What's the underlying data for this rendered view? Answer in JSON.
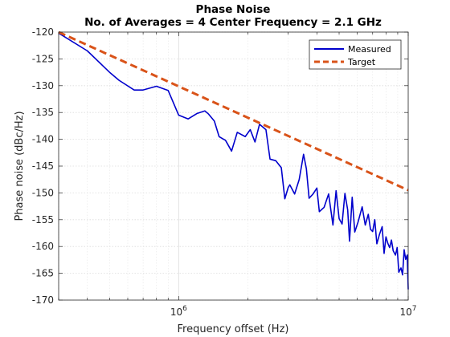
{
  "chart_data": {
    "type": "line",
    "title": "Phase Noise",
    "subtitle": "No. of Averages = 4 Center Frequency = 2.1 GHz",
    "xlabel": "Frequency offset (Hz)",
    "ylabel": "Phase noise (dBc/Hz)",
    "x_scale": "log",
    "xlim": [
      300000,
      10000000
    ],
    "ylim": [
      -170,
      -120
    ],
    "grid": true,
    "minor_grid": true,
    "legend_position": "top-right",
    "x_tick_labels": [
      {
        "base": "10",
        "exp": "6",
        "value": 1000000
      },
      {
        "base": "10",
        "exp": "7",
        "value": 10000000
      }
    ],
    "y_ticks": [
      -120,
      -125,
      -130,
      -135,
      -140,
      -145,
      -150,
      -155,
      -160,
      -165,
      -170
    ],
    "series": [
      {
        "name": "Measured",
        "color": "#0000cc",
        "style": "solid",
        "x": [
          300000,
          400000,
          500000,
          550000,
          640000,
          700000,
          800000,
          900000,
          1000000,
          1100000,
          1200000,
          1300000,
          1350000,
          1430000,
          1500000,
          1600000,
          1700000,
          1800000,
          1950000,
          2050000,
          2150000,
          2250000,
          2400000,
          2500000,
          2650000,
          2800000,
          2900000,
          3000000,
          3050000,
          3200000,
          3350000,
          3500000,
          3600000,
          3700000,
          3850000,
          4000000,
          4100000,
          4300000,
          4500000,
          4700000,
          4850000,
          5000000,
          5150000,
          5300000,
          5450000,
          5550000,
          5700000,
          5850000,
          6050000,
          6300000,
          6500000,
          6700000,
          6850000,
          7000000,
          7150000,
          7300000,
          7500000,
          7700000,
          7850000,
          8000000,
          8150000,
          8300000,
          8450000,
          8600000,
          8800000,
          8950000,
          9100000,
          9300000,
          9450000,
          9600000,
          9750000,
          9900000,
          10000000
        ],
        "y": [
          -120.2,
          -123.5,
          -127.5,
          -129,
          -130.8,
          -130.8,
          -130.1,
          -130.9,
          -135.5,
          -136.2,
          -135.2,
          -134.7,
          -135.3,
          -136.6,
          -139.5,
          -140.2,
          -142.2,
          -138.7,
          -139.5,
          -138.2,
          -140.5,
          -137.2,
          -138.2,
          -143.7,
          -144.0,
          -145.3,
          -151.1,
          -149.0,
          -148.5,
          -150.2,
          -147.5,
          -142.8,
          -145.5,
          -151.0,
          -150.2,
          -149.1,
          -153.5,
          -152.7,
          -150.2,
          -156.0,
          -149.6,
          -154.8,
          -155.8,
          -150.1,
          -153.2,
          -159.0,
          -150.8,
          -157.3,
          -155.4,
          -152.6,
          -156.0,
          -154.0,
          -156.8,
          -157.2,
          -155.0,
          -159.5,
          -157.7,
          -156.3,
          -161.3,
          -158.2,
          -159.4,
          -160.2,
          -158.8,
          -160.8,
          -161.6,
          -160.2,
          -164.8,
          -164.0,
          -165.3,
          -160.6,
          -162.4,
          -161.6,
          -168.0
        ]
      },
      {
        "name": "Target",
        "color": "#d95319",
        "style": "dashed",
        "x": [
          300000,
          10000000
        ],
        "y": [
          -120,
          -149.5
        ]
      }
    ]
  }
}
